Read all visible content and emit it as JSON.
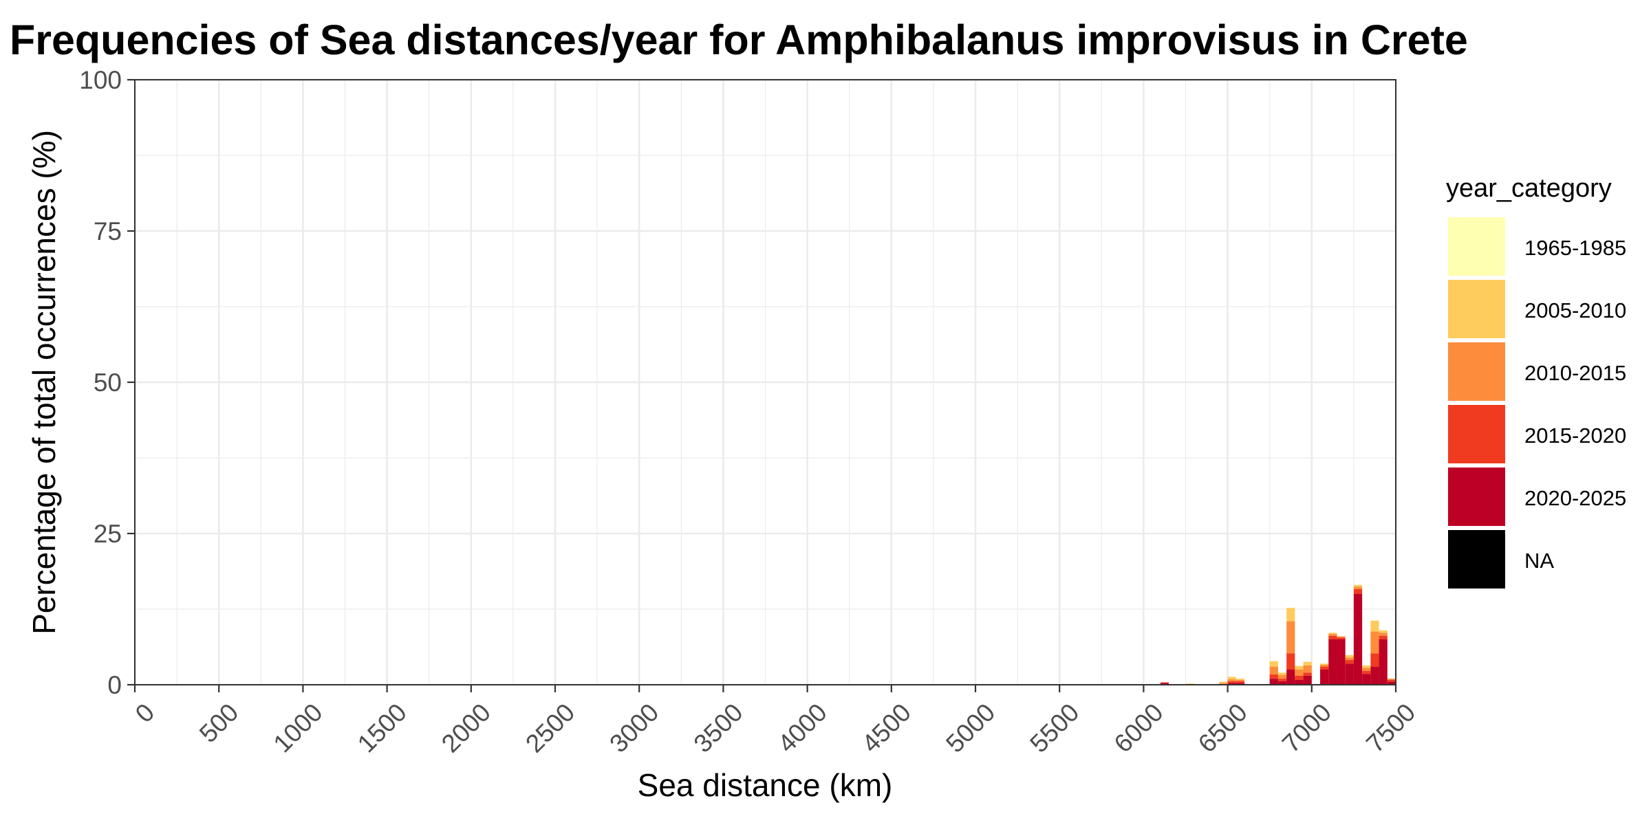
{
  "chart_data": {
    "type": "bar",
    "stacked": true,
    "title": "Frequencies of Sea distances/year for Amphibalanus improvisus in Crete",
    "xlabel": "Sea distance (km)",
    "ylabel": "Percentage of total occurrences (%)",
    "xlim": [
      0,
      7500
    ],
    "ylim": [
      0,
      100
    ],
    "x_ticks": [
      "0",
      "500",
      "1000",
      "1500",
      "2000",
      "2500",
      "3000",
      "3500",
      "4000",
      "4500",
      "5000",
      "5500",
      "6000",
      "6500",
      "7000",
      "7500"
    ],
    "y_ticks": [
      "0",
      "25",
      "50",
      "75",
      "100"
    ],
    "bin_width_km": 50,
    "grid": true,
    "legend": {
      "title": "year_category",
      "position": "right",
      "entries": [
        {
          "label": "1965-1985",
          "color": "#FFFFB2"
        },
        {
          "label": "2005-2010",
          "color": "#FECC5C"
        },
        {
          "label": "2010-2015",
          "color": "#FD8D3C"
        },
        {
          "label": "2015-2020",
          "color": "#F03B20"
        },
        {
          "label": "2020-2025",
          "color": "#BD0026"
        },
        {
          "label": "NA",
          "color": "#000000"
        }
      ]
    },
    "bins": [
      {
        "x": 6125,
        "2020-2025": 0.3,
        "2015-2020": 0.1
      },
      {
        "x": 6275,
        "2005-2010": 0.2
      },
      {
        "x": 6475,
        "2010-2015": 0.3,
        "2005-2010": 0.2
      },
      {
        "x": 6525,
        "2020-2025": 0.3,
        "2015-2020": 0.3,
        "2010-2015": 0.3,
        "2005-2010": 0.4
      },
      {
        "x": 6575,
        "2020-2025": 0.3,
        "2015-2020": 0.3,
        "2010-2015": 0.2,
        "2005-2010": 0.2
      },
      {
        "x": 6775,
        "2020-2025": 1.0,
        "2015-2020": 0.7,
        "2010-2015": 1.3,
        "2005-2010": 0.9
      },
      {
        "x": 6825,
        "2020-2025": 0.6,
        "2015-2020": 0.4,
        "2010-2015": 0.6,
        "2005-2010": 0.4
      },
      {
        "x": 6875,
        "2020-2025": 2.5,
        "2015-2020": 2.7,
        "2010-2015": 5.3,
        "2005-2010": 2.2
      },
      {
        "x": 6925,
        "2020-2025": 0.8,
        "2015-2020": 0.7,
        "2010-2015": 1.0,
        "2005-2010": 0.6
      },
      {
        "x": 6975,
        "2020-2025": 1.5,
        "2015-2020": 0.5,
        "2010-2015": 1.2,
        "2005-2010": 0.6
      },
      {
        "x": 7075,
        "2020-2025": 2.5,
        "2015-2020": 0.5,
        "2010-2015": 0.3,
        "2005-2010": 0.2
      },
      {
        "x": 7125,
        "2020-2025": 7.5,
        "2015-2020": 0.6,
        "2010-2015": 0.3,
        "2005-2010": 0.2
      },
      {
        "x": 7175,
        "2020-2025": 7.5,
        "2015-2020": 0.3,
        "2010-2015": 0.2
      },
      {
        "x": 7225,
        "2020-2025": 3.5,
        "2015-2020": 0.6,
        "2010-2015": 0.4,
        "2005-2010": 0.4
      },
      {
        "x": 7275,
        "2020-2025": 15.0,
        "2015-2020": 0.8,
        "2010-2015": 0.4,
        "2005-2010": 0.3
      },
      {
        "x": 7325,
        "2020-2025": 1.8,
        "2015-2020": 0.5,
        "2010-2015": 0.5,
        "2005-2010": 0.4
      },
      {
        "x": 7375,
        "2020-2025": 3.0,
        "2015-2020": 2.2,
        "2010-2015": 3.6,
        "2005-2010": 1.8
      },
      {
        "x": 7425,
        "2020-2025": 7.5,
        "2015-2020": 0.6,
        "2010-2015": 0.5,
        "2005-2010": 0.4
      },
      {
        "x": 7475,
        "2020-2025": 0.5,
        "2015-2020": 0.3,
        "2010-2015": 0.2
      }
    ]
  }
}
